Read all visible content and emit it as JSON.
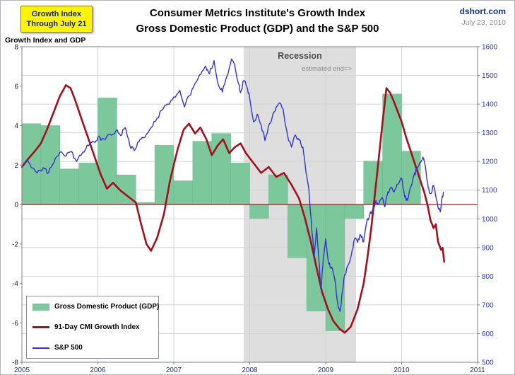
{
  "header": {
    "badge": {
      "line1": "Growth Index",
      "line2": "Through July 21"
    },
    "title_line1": "Consumer Metrics Institute's Growth Index",
    "title_line2": "Gross Domestic Product (GDP) and the S&P 500",
    "source": "dshort.com",
    "date": "July 23, 2010"
  },
  "chart_data": {
    "type": "line",
    "title": "Consumer Metrics Institute's Growth Index — Gross Domestic Product (GDP) and the S&P 500",
    "x_range": [
      2005,
      2011
    ],
    "x_ticks": [
      2005,
      2006,
      2007,
      2008,
      2009,
      2010,
      2011
    ],
    "left_axis": {
      "label": "Growth Index and GDP",
      "min": -8,
      "max": 8,
      "ticks": [
        8,
        6,
        4,
        2,
        0,
        -2,
        -4,
        -6,
        -8
      ]
    },
    "right_axis": {
      "min": 500,
      "max": 1600,
      "ticks": [
        1600,
        1500,
        1400,
        1300,
        1200,
        1100,
        1000,
        900,
        800,
        700,
        600,
        500
      ]
    },
    "zero_line_color": "#9b1c1c",
    "grid": true,
    "legend_position": "bottom-left",
    "recession": {
      "start": 2007.92,
      "end": 2009.4,
      "label": "Recession",
      "sublabel": "estimated end=>",
      "color": "#dedede"
    },
    "series": [
      {
        "name": "Gross Domestic Product (GDP)",
        "type": "bar",
        "axis": "left",
        "color": "#7cc89c",
        "bar_width": 0.25,
        "x": [
          2005.0,
          2005.25,
          2005.5,
          2005.75,
          2006.0,
          2006.25,
          2006.5,
          2006.75,
          2007.0,
          2007.25,
          2007.5,
          2007.75,
          2008.0,
          2008.25,
          2008.5,
          2008.75,
          2009.0,
          2009.25,
          2009.5,
          2009.75,
          2010.0
        ],
        "values": [
          4.1,
          4.0,
          1.8,
          2.1,
          5.4,
          1.5,
          0.1,
          3.0,
          1.2,
          3.2,
          3.6,
          2.1,
          -0.7,
          1.5,
          -2.7,
          -5.4,
          -6.4,
          -0.7,
          2.2,
          5.6,
          2.7
        ]
      },
      {
        "name": "91-Day CMI Growth Index",
        "type": "line",
        "axis": "left",
        "color": "#a30f1d",
        "x": [
          2005.0,
          2005.08,
          2005.17,
          2005.25,
          2005.33,
          2005.42,
          2005.5,
          2005.58,
          2005.64,
          2005.7,
          2005.78,
          2005.87,
          2005.95,
          2006.04,
          2006.12,
          2006.2,
          2006.3,
          2006.4,
          2006.5,
          2006.57,
          2006.64,
          2006.7,
          2006.78,
          2006.87,
          2006.95,
          2007.05,
          2007.13,
          2007.2,
          2007.28,
          2007.35,
          2007.43,
          2007.5,
          2007.58,
          2007.65,
          2007.73,
          2007.8,
          2007.88,
          2007.95,
          2008.05,
          2008.15,
          2008.25,
          2008.35,
          2008.45,
          2008.55,
          2008.65,
          2008.72,
          2008.8,
          2008.88,
          2008.95,
          2009.03,
          2009.1,
          2009.18,
          2009.25,
          2009.33,
          2009.42,
          2009.5,
          2009.55,
          2009.6,
          2009.65,
          2009.7,
          2009.75,
          2009.8,
          2009.85,
          2009.9,
          2009.95,
          2010.0,
          2010.06,
          2010.12,
          2010.18,
          2010.24,
          2010.3,
          2010.34,
          2010.38,
          2010.42,
          2010.45,
          2010.48,
          2010.52,
          2010.54,
          2010.56
        ],
        "values": [
          1.9,
          2.3,
          2.7,
          3.1,
          3.8,
          4.7,
          5.5,
          6.05,
          5.9,
          5.3,
          4.4,
          3.4,
          2.5,
          1.5,
          0.8,
          1.1,
          0.7,
          0.4,
          0.1,
          -1.0,
          -2.0,
          -2.35,
          -1.7,
          -0.5,
          1.2,
          2.8,
          3.8,
          4.1,
          3.6,
          3.9,
          3.3,
          2.5,
          3.0,
          3.3,
          2.6,
          2.9,
          3.1,
          2.6,
          2.1,
          1.6,
          1.9,
          1.4,
          1.6,
          1.0,
          0.3,
          -0.6,
          -1.8,
          -3.2,
          -4.4,
          -5.3,
          -5.9,
          -6.3,
          -6.5,
          -6.2,
          -5.3,
          -4.0,
          -2.7,
          -1.2,
          0.6,
          2.4,
          4.2,
          5.9,
          5.65,
          5.2,
          4.7,
          4.2,
          3.4,
          2.7,
          2.0,
          1.3,
          0.6,
          0.0,
          -0.8,
          -1.2,
          -1.0,
          -1.9,
          -2.3,
          -2.2,
          -2.9
        ]
      },
      {
        "name": "S&P 500",
        "type": "line",
        "axis": "right",
        "color": "#3333cc",
        "x": [
          2005.0,
          2005.06,
          2005.12,
          2005.2,
          2005.28,
          2005.35,
          2005.42,
          2005.5,
          2005.58,
          2005.65,
          2005.72,
          2005.8,
          2005.88,
          2005.95,
          2006.0,
          2006.08,
          2006.16,
          2006.24,
          2006.3,
          2006.36,
          2006.42,
          2006.48,
          2006.54,
          2006.6,
          2006.68,
          2006.76,
          2006.84,
          2006.92,
          2007.0,
          2007.08,
          2007.14,
          2007.2,
          2007.28,
          2007.36,
          2007.42,
          2007.47,
          2007.53,
          2007.59,
          2007.64,
          2007.7,
          2007.76,
          2007.8,
          2007.84,
          2007.88,
          2007.92,
          2007.96,
          2008.0,
          2008.05,
          2008.1,
          2008.15,
          2008.2,
          2008.26,
          2008.32,
          2008.38,
          2008.44,
          2008.5,
          2008.55,
          2008.6,
          2008.65,
          2008.7,
          2008.74,
          2008.78,
          2008.82,
          2008.85,
          2008.88,
          2008.91,
          2008.94,
          2008.97,
          2009.0,
          2009.04,
          2009.08,
          2009.12,
          2009.16,
          2009.19,
          2009.24,
          2009.29,
          2009.34,
          2009.38,
          2009.42,
          2009.46,
          2009.5,
          2009.54,
          2009.58,
          2009.62,
          2009.66,
          2009.7,
          2009.74,
          2009.78,
          2009.82,
          2009.86,
          2009.9,
          2009.94,
          2010.0,
          2010.04,
          2010.08,
          2010.12,
          2010.16,
          2010.2,
          2010.24,
          2010.28,
          2010.32,
          2010.35,
          2010.38,
          2010.42,
          2010.45,
          2010.48,
          2010.51,
          2010.53,
          2010.55
        ],
        "values": [
          1185,
          1205,
          1180,
          1160,
          1178,
          1160,
          1195,
          1232,
          1218,
          1235,
          1200,
          1232,
          1255,
          1268,
          1285,
          1278,
          1295,
          1308,
          1290,
          1318,
          1256,
          1238,
          1268,
          1282,
          1310,
          1340,
          1378,
          1400,
          1425,
          1448,
          1390,
          1428,
          1472,
          1505,
          1532,
          1505,
          1552,
          1465,
          1442,
          1498,
          1557,
          1540,
          1482,
          1440,
          1482,
          1462,
          1420,
          1338,
          1365,
          1328,
          1273,
          1332,
          1372,
          1402,
          1382,
          1288,
          1250,
          1292,
          1275,
          1250,
          1162,
          1100,
          952,
          872,
          968,
          858,
          756,
          870,
          930,
          842,
          832,
          788,
          702,
          677,
          792,
          836,
          876,
          930,
          918,
          944,
          920,
          988,
          1012,
          1032,
          1064,
          1052,
          1074,
          1042,
          1094,
          1110,
          1094,
          1120,
          1142,
          1076,
          1064,
          1112,
          1150,
          1172,
          1196,
          1215,
          1168,
          1108,
          1088,
          1116,
          1078,
          1040,
          1024,
          1068,
          1093
        ]
      }
    ]
  }
}
